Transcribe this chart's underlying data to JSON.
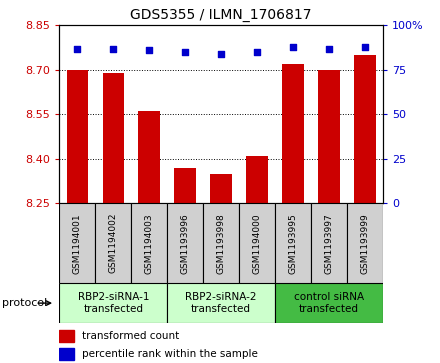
{
  "title": "GDS5355 / ILMN_1706817",
  "samples": [
    "GSM1194001",
    "GSM1194002",
    "GSM1194003",
    "GSM1193996",
    "GSM1193998",
    "GSM1194000",
    "GSM1193995",
    "GSM1193997",
    "GSM1193999"
  ],
  "bar_values": [
    8.7,
    8.69,
    8.56,
    8.37,
    8.35,
    8.41,
    8.72,
    8.7,
    8.75
  ],
  "percentile_values": [
    87,
    87,
    86,
    85,
    84,
    85,
    88,
    87,
    88
  ],
  "ylim_left": [
    8.25,
    8.85
  ],
  "ylim_right": [
    0,
    100
  ],
  "yticks_left": [
    8.25,
    8.4,
    8.55,
    8.7,
    8.85
  ],
  "yticks_right": [
    0,
    25,
    50,
    75,
    100
  ],
  "ytick_labels_right": [
    "0",
    "25",
    "50",
    "75",
    "100%"
  ],
  "bar_color": "#cc0000",
  "dot_color": "#0000cc",
  "bar_width": 0.6,
  "groups": [
    {
      "label": "RBP2-siRNA-1\ntransfected",
      "indices": [
        0,
        1,
        2
      ],
      "color": "#ccffcc"
    },
    {
      "label": "RBP2-siRNA-2\ntransfected",
      "indices": [
        3,
        4,
        5
      ],
      "color": "#ccffcc"
    },
    {
      "label": "control siRNA\ntransfected",
      "indices": [
        6,
        7,
        8
      ],
      "color": "#44bb44"
    }
  ],
  "protocol_label": "protocol",
  "legend_bar_label": "transformed count",
  "legend_dot_label": "percentile rank within the sample",
  "tick_label_color_left": "#cc0000",
  "tick_label_color_right": "#0000cc",
  "sample_cell_color": "#d0d0d0"
}
